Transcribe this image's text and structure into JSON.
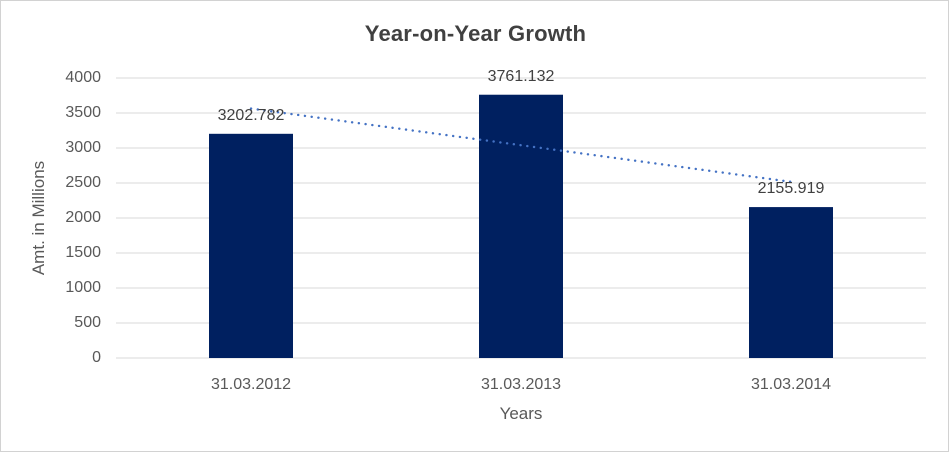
{
  "chart_data": {
    "type": "bar",
    "title": "Year-on-Year Growth",
    "xlabel": "Years",
    "ylabel": "Amt. in Millions",
    "categories": [
      "31.03.2012",
      "31.03.2013",
      "31.03.2014"
    ],
    "values": [
      3202.782,
      3761.132,
      2155.919
    ],
    "data_labels": [
      "3202.782",
      "3761.132",
      "2155.919"
    ],
    "ylim": [
      0,
      4000
    ],
    "yticks": [
      0,
      500,
      1000,
      1500,
      2000,
      2500,
      3000,
      3500,
      4000
    ],
    "ytick_labels": [
      "0",
      "500",
      "1000",
      "1500",
      "2000",
      "2500",
      "3000",
      "3500",
      "4000"
    ],
    "grid": true,
    "legend": false,
    "bar_color": "#002060",
    "trendline": {
      "type": "linear",
      "style": "dotted",
      "color": "#4472C4",
      "start_value": 3563.4,
      "end_value": 2516.5
    }
  },
  "colors": {
    "background": "#FFFFFF",
    "chart_border": "#D2D2D2",
    "gridline": "#D9D9D9",
    "title_text": "#404040",
    "tick_text": "#595959",
    "axis_title_text": "#595959",
    "data_label_text": "#404040"
  }
}
